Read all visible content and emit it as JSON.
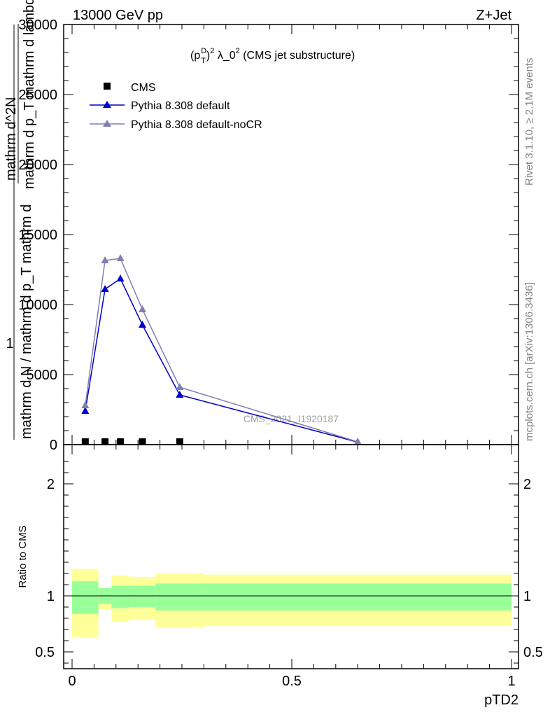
{
  "header": {
    "energy_label": "13000 GeV pp",
    "process_label": "Z+Jet",
    "side_top": "Rivet 3.1.10, ≥ 2.1M events",
    "side_bottom": "mcplots.cern.ch [arXiv:1306.3436]",
    "watermark": "CMS_2021_I1920187"
  },
  "chart_data": [
    {
      "type": "line",
      "title": "(p_T^D)^2 λ_0^2 (CMS jet substructure)",
      "title_parts": {
        "base": "(p",
        "sup1": "D",
        "sub1": "T",
        "mid": ")",
        "sup2": "2",
        "rest": " λ_0",
        "sup3": "2",
        "tail": " (CMS jet substructure)"
      },
      "ylabel_parts": [
        "1",
        "mathrm d N / mathrm d p_T mathrm d",
        "mathrm d^2N",
        "mathrm d p_T mathrm d lambda"
      ],
      "xlim": [
        0,
        1
      ],
      "ylim": [
        0,
        30000
      ],
      "y_ticks": [
        0,
        5000,
        10000,
        15000,
        20000,
        25000,
        30000
      ],
      "y_tick_labels": [
        "0",
        "5000",
        "10000",
        "15000",
        "20000",
        "25000",
        "30000"
      ],
      "series": [
        {
          "name": "CMS",
          "marker": "square",
          "color": "#000000",
          "x": [
            0.03,
            0.075,
            0.11,
            0.16,
            0.245
          ],
          "values": [
            0,
            0,
            0,
            0,
            0
          ]
        },
        {
          "name": "Pythia 8.308 default",
          "marker": "triangle",
          "color": "#0000cc",
          "x": [
            0.03,
            0.075,
            0.11,
            0.16,
            0.245,
            0.65
          ],
          "values": [
            2400,
            11100,
            11850,
            8550,
            3550,
            180
          ]
        },
        {
          "name": "Pythia 8.308 default-noCR",
          "marker": "triangle",
          "color": "#7f7fb2",
          "x": [
            0.03,
            0.075,
            0.11,
            0.16,
            0.245,
            0.65
          ],
          "values": [
            2800,
            13150,
            13300,
            9650,
            4100,
            200
          ]
        }
      ],
      "legend_position": "top-left"
    },
    {
      "type": "area",
      "ylabel": "Ratio to CMS",
      "xlabel": "pTD2",
      "xlim": [
        0,
        1
      ],
      "ylim": [
        0.35,
        2.35
      ],
      "y_ticks": [
        0.5,
        1,
        2
      ],
      "y_tick_labels": [
        "0.5",
        "1",
        "2"
      ],
      "x_ticks": [
        0,
        0.5,
        1
      ],
      "x_tick_labels": [
        "0",
        "0.5",
        "1"
      ],
      "reference_line": 1,
      "bands": [
        {
          "x0": 0.0,
          "x1": 0.06,
          "inner": [
            0.84,
            1.13
          ],
          "outer": [
            0.63,
            1.24
          ]
        },
        {
          "x0": 0.06,
          "x1": 0.09,
          "inner": [
            0.93,
            1.07
          ],
          "outer": [
            0.88,
            1.07
          ]
        },
        {
          "x0": 0.09,
          "x1": 0.13,
          "inner": [
            0.89,
            1.09
          ],
          "outer": [
            0.77,
            1.18
          ]
        },
        {
          "x0": 0.13,
          "x1": 0.19,
          "inner": [
            0.9,
            1.09
          ],
          "outer": [
            0.79,
            1.17
          ]
        },
        {
          "x0": 0.19,
          "x1": 0.3,
          "inner": [
            0.87,
            1.11
          ],
          "outer": [
            0.72,
            1.2
          ]
        },
        {
          "x0": 0.3,
          "x1": 1.0,
          "inner": [
            0.87,
            1.11
          ],
          "outer": [
            0.73,
            1.19
          ]
        }
      ],
      "colors": {
        "inner": "#99ff99",
        "outer": "#ffff99"
      }
    }
  ]
}
